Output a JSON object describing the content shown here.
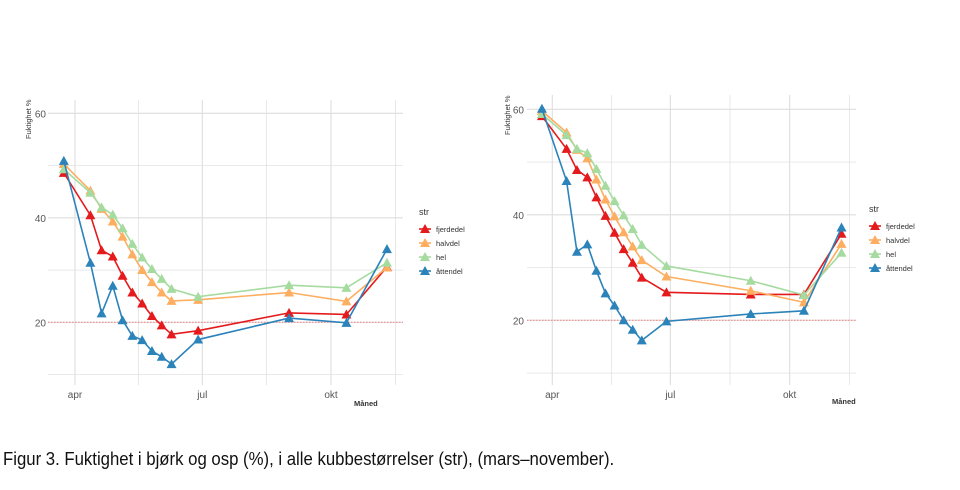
{
  "caption": "Figur 3. Fuktighet i bjørk og osp (%), i alle kubbestørrelser (str), (mars–november).",
  "colors": {
    "fjerdedel": "#e41a1c",
    "halvdel": "#fdae61",
    "hel": "#a6dba0",
    "åttendel": "#2b83ba",
    "reference": "#f08080",
    "grid": "#dcdcdc"
  },
  "chart_data": [
    {
      "type": "line",
      "title": "",
      "xlabel": "Måned",
      "ylabel": "Fuktighet %",
      "x_ticks": [
        {
          "date": "04-01",
          "label": "apr"
        },
        {
          "date": "07-01",
          "label": "jul"
        },
        {
          "date": "10-01",
          "label": "okt"
        }
      ],
      "y_ticks": [
        20,
        40,
        60
      ],
      "ylim": [
        8,
        61
      ],
      "reference_line": 20,
      "legend_title": "str",
      "legend_position": "right",
      "x": [
        "03-24",
        "04-12",
        "04-20",
        "04-28",
        "05-05",
        "05-12",
        "05-19",
        "05-26",
        "06-02",
        "06-09",
        "06-28",
        "09-01",
        "10-12",
        "11-10"
      ],
      "series": [
        {
          "name": "fjerdedel",
          "values": [
            48.6,
            40.5,
            33.8,
            32.6,
            28.9,
            25.7,
            23.6,
            21.2,
            19.4,
            17.7,
            18.4,
            21.8,
            21.5,
            30.6
          ]
        },
        {
          "name": "halvdel",
          "values": [
            50.3,
            45.2,
            41.7,
            39.3,
            36.4,
            33.0,
            30.0,
            27.7,
            25.7,
            24.1,
            24.3,
            25.7,
            24.0,
            30.5
          ]
        },
        {
          "name": "hel",
          "values": [
            49.3,
            44.8,
            42.0,
            40.6,
            38.0,
            35.0,
            32.4,
            30.2,
            28.3,
            26.4,
            24.9,
            27.1,
            26.6,
            31.4
          ]
        },
        {
          "name": "åttendel",
          "values": [
            50.9,
            31.4,
            21.7,
            27.0,
            20.4,
            17.4,
            16.6,
            14.5,
            13.4,
            12.0,
            16.7,
            20.8,
            19.9,
            34.0
          ]
        }
      ]
    },
    {
      "type": "line",
      "title": "",
      "xlabel": "Måned",
      "ylabel": "Fuktighet %",
      "x_ticks": [
        {
          "date": "04-01",
          "label": "apr"
        },
        {
          "date": "07-01",
          "label": "jul"
        },
        {
          "date": "10-01",
          "label": "okt"
        }
      ],
      "y_ticks": [
        20,
        40,
        60
      ],
      "ylim": [
        8,
        61
      ],
      "reference_line": 20,
      "legend_title": "str",
      "legend_position": "right",
      "x": [
        "03-24",
        "04-12",
        "04-20",
        "04-28",
        "05-05",
        "05-12",
        "05-19",
        "05-26",
        "06-02",
        "06-09",
        "06-28",
        "09-01",
        "10-12",
        "11-10"
      ],
      "series": [
        {
          "name": "fjerdedel",
          "values": [
            58.7,
            52.5,
            48.5,
            47.1,
            43.3,
            39.8,
            36.6,
            33.5,
            30.9,
            28.1,
            25.3,
            24.9,
            24.9,
            36.4
          ]
        },
        {
          "name": "halvdel",
          "values": [
            59.7,
            55.6,
            52.3,
            50.7,
            46.7,
            42.9,
            39.7,
            36.7,
            34.0,
            31.4,
            28.3,
            25.6,
            23.4,
            34.5
          ]
        },
        {
          "name": "hel",
          "values": [
            59.1,
            55.1,
            52.5,
            51.7,
            48.7,
            45.5,
            42.6,
            39.9,
            37.3,
            34.3,
            30.3,
            27.5,
            24.8,
            32.8
          ]
        },
        {
          "name": "åttendel",
          "values": [
            60.1,
            46.4,
            33.0,
            34.4,
            29.4,
            25.1,
            22.8,
            20.0,
            18.2,
            16.2,
            19.8,
            21.2,
            21.8,
            37.6
          ]
        }
      ]
    }
  ]
}
